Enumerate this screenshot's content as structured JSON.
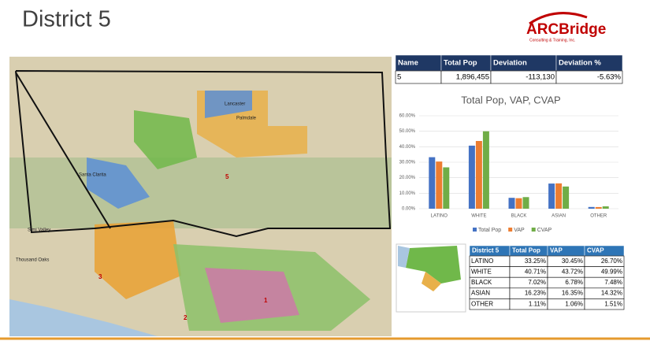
{
  "header": {
    "title": "District 5",
    "logo": {
      "name": "ARCBridge",
      "tagline": "Consulting & Training, Inc."
    }
  },
  "summary_table": {
    "columns": [
      "Name",
      "Total Pop",
      "Deviation",
      "Deviation %"
    ],
    "rows": [
      [
        "5",
        "1,896,455",
        "-113,130",
        "-5.63%"
      ]
    ]
  },
  "chart_data": {
    "type": "bar",
    "title": "Total Pop, VAP, CVAP",
    "categories": [
      "LATINO",
      "WHITE",
      "BLACK",
      "ASIAN",
      "OTHER"
    ],
    "series": [
      {
        "name": "Total Pop",
        "color": "#4472c4",
        "values": [
          33.25,
          40.71,
          7.02,
          16.23,
          1.11
        ]
      },
      {
        "name": "VAP",
        "color": "#ed7d31",
        "values": [
          30.45,
          43.72,
          6.78,
          16.35,
          1.06
        ]
      },
      {
        "name": "CVAP",
        "color": "#70ad47",
        "values": [
          26.7,
          49.99,
          7.48,
          14.32,
          1.51
        ]
      }
    ],
    "ylim": [
      0,
      60
    ],
    "yticks": [
      {
        "value": 0,
        "label": "0.00%"
      },
      {
        "value": 10,
        "label": "10.00%"
      },
      {
        "value": 20,
        "label": "20.00%"
      },
      {
        "value": 30,
        "label": "30.00%"
      },
      {
        "value": 40,
        "label": "40.00%"
      },
      {
        "value": 50,
        "label": "50.00%"
      },
      {
        "value": 60,
        "label": "60.00%"
      }
    ],
    "grid": true,
    "legend": "bottom"
  },
  "demographics_table": {
    "columns": [
      "District 5",
      "Total Pop",
      "VAP",
      "CVAP"
    ],
    "rows": [
      [
        "LATINO",
        "33.25%",
        "30.45%",
        "26.70%"
      ],
      [
        "WHITE",
        "40.71%",
        "43.72%",
        "49.99%"
      ],
      [
        "BLACK",
        "7.02%",
        "6.78%",
        "7.48%"
      ],
      [
        "ASIAN",
        "16.23%",
        "16.35%",
        "14.32%"
      ],
      [
        "OTHER",
        "1.11%",
        "1.06%",
        "1.51%"
      ]
    ]
  },
  "map": {
    "labels": [
      "Lancaster",
      "Palmdale",
      "Santa Clarita",
      "Simi Valley",
      "Thousand Oaks",
      "5",
      "3",
      "2",
      "1"
    ]
  }
}
